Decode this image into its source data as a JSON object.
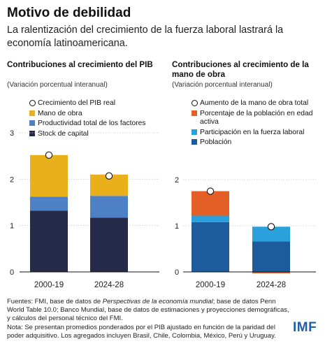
{
  "header": {
    "title": "Motivo de debilidad",
    "subtitle": "La ralentización del crecimiento de la fuerza laboral lastrará la economía latinoamericana."
  },
  "footer": {
    "source_pre": "Fuentes: FMI, base de datos de ",
    "source_italic": "Perspectivas de la economía mundial",
    "source_post": "; base de datos Penn World Table 10.0; Banco Mundial, base de datos de estimaciones y proyecciones demográficas, y cálculos del personal técnico del FMI.",
    "note": "Nota: Se presentan promedios ponderados por el PIB ajustado en función de la paridad del poder adquisitivo. Los agregados incluyen Brasil, Chile, Colombia, México, Perú y Uruguay."
  },
  "logo": "IMF",
  "chart_data": [
    {
      "type": "bar",
      "stacked": true,
      "title": "Contribuciones al crecimiento del PIB",
      "subtitle": "(Variación porcentual interanual)",
      "categories": [
        "2000-19",
        "2024-28"
      ],
      "ylim": [
        0,
        3
      ],
      "yticks": [
        "0",
        "1",
        "2",
        "3"
      ],
      "marker_series": {
        "name": "Crecimiento del PIB real",
        "values": [
          2.52,
          2.07
        ]
      },
      "legend": [
        "Crecimiento del PIB real",
        "Mano de obra",
        "Productividad total de los factores",
        "Stock de capital"
      ],
      "series": [
        {
          "name": "Stock de capital",
          "values": [
            1.32,
            1.17
          ],
          "color": "#25294a"
        },
        {
          "name": "Productividad total de los factores",
          "values": [
            0.3,
            0.47
          ],
          "color": "#4d80c4"
        },
        {
          "name": "Mano de obra",
          "values": [
            0.9,
            0.46
          ],
          "color": "#eab01c"
        }
      ]
    },
    {
      "type": "bar",
      "stacked": true,
      "title": "Contribuciones al crecimiento de la mano de obra",
      "subtitle": "(Variación porcentual interanual)",
      "categories": [
        "2000-19",
        "2024-28"
      ],
      "ylim": [
        0,
        2
      ],
      "yticks": [
        "0",
        "1",
        "2"
      ],
      "marker_series": {
        "name": "Aumento de la mano de obra total",
        "values": [
          1.75,
          0.98
        ]
      },
      "legend": [
        "Aumento de la mano de obra total",
        "Porcentaje de la población en edad activa",
        "Participación en la fuerza laboral",
        "Población"
      ],
      "series": [
        {
          "name": "Población",
          "values": [
            1.08,
            0.66
          ],
          "color": "#1c5c9c"
        },
        {
          "name": "Participación en la fuerza laboral",
          "values": [
            0.14,
            0.32
          ],
          "color": "#2aa0dc"
        },
        {
          "name": "Porcentaje de la población en edad activa",
          "values": [
            0.53,
            -0.03
          ],
          "color": "#e35f26"
        }
      ]
    }
  ]
}
